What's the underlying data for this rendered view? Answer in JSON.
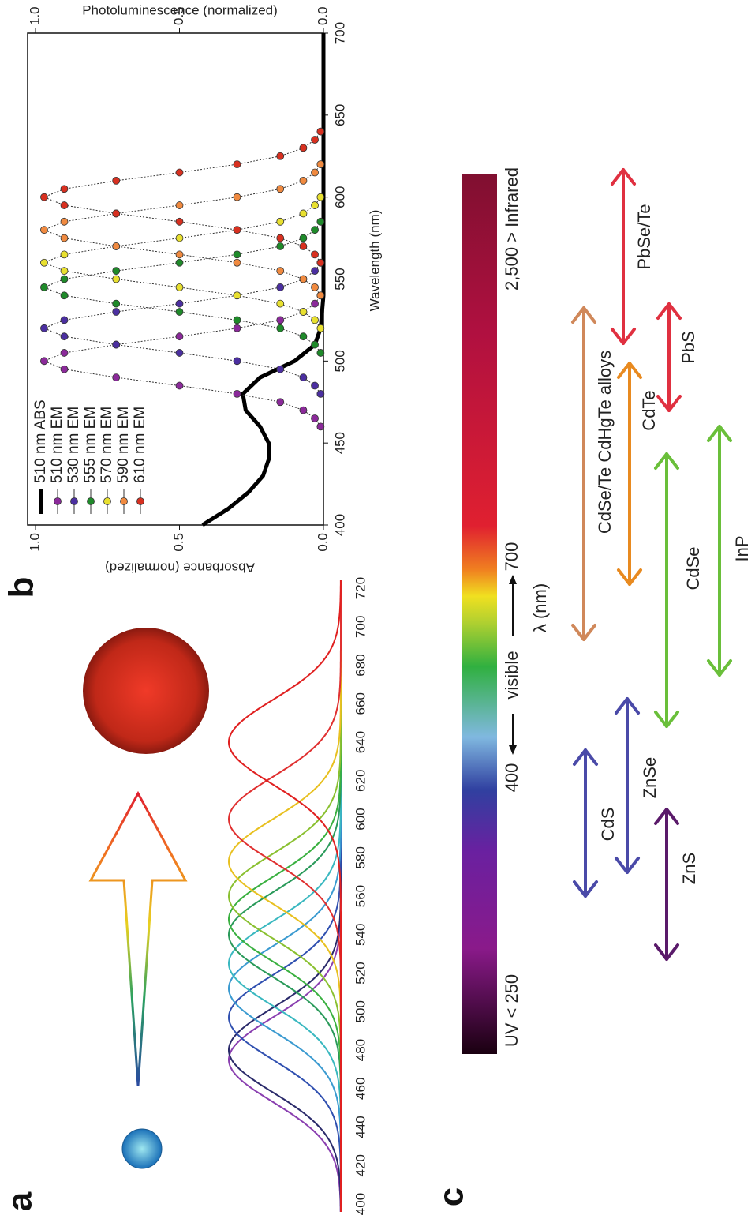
{
  "chart_data": [
    {
      "type": "curves",
      "panel_label": "a",
      "xlim": [
        400,
        720
      ],
      "xticks": [
        400,
        420,
        440,
        460,
        480,
        500,
        520,
        540,
        560,
        580,
        600,
        620,
        640,
        660,
        680,
        700,
        720
      ],
      "curves": [
        {
          "peak": 475,
          "color": "#8a3fb0"
        },
        {
          "peak": 480,
          "color": "#2a2a6a"
        },
        {
          "peak": 497,
          "color": "#3050b0"
        },
        {
          "peak": 512,
          "color": "#3a9ad0"
        },
        {
          "peak": 525,
          "color": "#3ab8c0"
        },
        {
          "peak": 540,
          "color": "#2a9a5a"
        },
        {
          "peak": 548,
          "color": "#3ab040"
        },
        {
          "peak": 560,
          "color": "#8ac030"
        },
        {
          "peak": 578,
          "color": "#e8c020"
        },
        {
          "peak": 600,
          "color": "#e03030"
        },
        {
          "peak": 640,
          "color": "#e02020"
        }
      ]
    },
    {
      "type": "line",
      "panel_label": "b",
      "xlabel": "Wavelength (nm)",
      "ylabel": "Absorbance (normalized)",
      "y2label": "Photoluminescence (normalized)",
      "xlim": [
        400,
        700
      ],
      "xticks": [
        400,
        450,
        500,
        550,
        600,
        650,
        700
      ],
      "ylim": [
        0,
        1
      ],
      "yticks": [
        {
          "value": 0,
          "label": "0.0"
        },
        {
          "value": 0.5,
          "label": "0.5"
        },
        {
          "value": 1,
          "label": "1.0"
        }
      ],
      "y2lim": [
        0,
        1
      ],
      "y2ticks": [
        {
          "value": 0,
          "label": "0.0"
        },
        {
          "value": 0.5,
          "label": "0.5"
        },
        {
          "value": 1,
          "label": "1.0"
        }
      ],
      "series": [
        {
          "name": "510 nm ABS",
          "color": "#000000",
          "marker": false,
          "x": [
            400,
            410,
            420,
            430,
            440,
            450,
            460,
            470,
            480,
            490,
            500,
            510,
            520,
            540,
            700
          ],
          "values": [
            0.42,
            0.33,
            0.26,
            0.21,
            0.19,
            0.19,
            0.22,
            0.27,
            0.28,
            0.22,
            0.1,
            0.03,
            0.01,
            0,
            0
          ]
        },
        {
          "name": "510 nm EM",
          "color": "#8b2a9a",
          "marker": true,
          "axis": "y2",
          "x": [
            460,
            465,
            470,
            475,
            480,
            485,
            490,
            495,
            500,
            505,
            510,
            515,
            520,
            525,
            530,
            535,
            540
          ],
          "values": [
            0.01,
            0.03,
            0.07,
            0.15,
            0.3,
            0.5,
            0.72,
            0.9,
            0.97,
            0.9,
            0.72,
            0.5,
            0.3,
            0.15,
            0.07,
            0.03,
            0.01
          ]
        },
        {
          "name": "530 nm EM",
          "color": "#4b2fa0",
          "marker": true,
          "axis": "y2",
          "x": [
            480,
            485,
            490,
            495,
            500,
            505,
            510,
            515,
            520,
            525,
            530,
            535,
            540,
            545,
            550,
            555,
            560
          ],
          "values": [
            0.01,
            0.03,
            0.07,
            0.15,
            0.3,
            0.5,
            0.72,
            0.9,
            0.97,
            0.9,
            0.72,
            0.5,
            0.3,
            0.15,
            0.07,
            0.03,
            0.01
          ]
        },
        {
          "name": "555 nm EM",
          "color": "#1f8a2a",
          "marker": true,
          "axis": "y2",
          "x": [
            505,
            510,
            515,
            520,
            525,
            530,
            535,
            540,
            545,
            550,
            555,
            560,
            565,
            570,
            575,
            580,
            585
          ],
          "values": [
            0.01,
            0.03,
            0.07,
            0.15,
            0.3,
            0.5,
            0.72,
            0.9,
            0.97,
            0.9,
            0.72,
            0.5,
            0.3,
            0.15,
            0.07,
            0.03,
            0.01
          ]
        },
        {
          "name": "570 nm EM",
          "color": "#e8e030",
          "marker": true,
          "axis": "y2",
          "x": [
            520,
            525,
            530,
            535,
            540,
            545,
            550,
            555,
            560,
            565,
            570,
            575,
            580,
            585,
            590,
            595,
            600
          ],
          "values": [
            0.01,
            0.03,
            0.07,
            0.15,
            0.3,
            0.5,
            0.72,
            0.9,
            0.97,
            0.9,
            0.72,
            0.5,
            0.3,
            0.15,
            0.07,
            0.03,
            0.01
          ]
        },
        {
          "name": "590 nm EM",
          "color": "#f08a40",
          "marker": true,
          "axis": "y2",
          "x": [
            540,
            545,
            550,
            555,
            560,
            565,
            570,
            575,
            580,
            585,
            590,
            595,
            600,
            605,
            610,
            615,
            620
          ],
          "values": [
            0.01,
            0.03,
            0.07,
            0.15,
            0.3,
            0.5,
            0.72,
            0.9,
            0.97,
            0.9,
            0.72,
            0.5,
            0.3,
            0.15,
            0.07,
            0.03,
            0.01
          ]
        },
        {
          "name": "610 nm EM",
          "color": "#d83020",
          "marker": true,
          "axis": "y2",
          "x": [
            560,
            565,
            570,
            575,
            580,
            585,
            590,
            595,
            600,
            605,
            610,
            615,
            620,
            625,
            630,
            635,
            640
          ],
          "values": [
            0.01,
            0.03,
            0.07,
            0.15,
            0.3,
            0.5,
            0.72,
            0.9,
            0.97,
            0.9,
            0.72,
            0.5,
            0.3,
            0.15,
            0.07,
            0.03,
            0.01
          ]
        }
      ]
    }
  ],
  "panel_c": {
    "panel_label": "c",
    "spectrum": {
      "uv": "UV < 250",
      "left_tick": "400",
      "visible": "visible",
      "right_tick": "700",
      "infrared": "2,500 > Infrared",
      "unit": "λ (nm)"
    },
    "materials": [
      {
        "label": "CdS",
        "color": "#4a4aa8"
      },
      {
        "label": "ZnSe",
        "color": "#4a4aa8"
      },
      {
        "label": "ZnS",
        "color": "#5a1a6a"
      },
      {
        "label": "CdSe",
        "color": "#6abf3a"
      },
      {
        "label": "InP",
        "color": "#6abf3a"
      },
      {
        "label": "CdSe/Te CdHgTe alloys",
        "color": "#d0885a"
      },
      {
        "label": "CdTe",
        "color": "#e88a20"
      },
      {
        "label": "PbS",
        "color": "#e03040"
      },
      {
        "label": "PbSe/Te",
        "color": "#e03040"
      }
    ]
  }
}
